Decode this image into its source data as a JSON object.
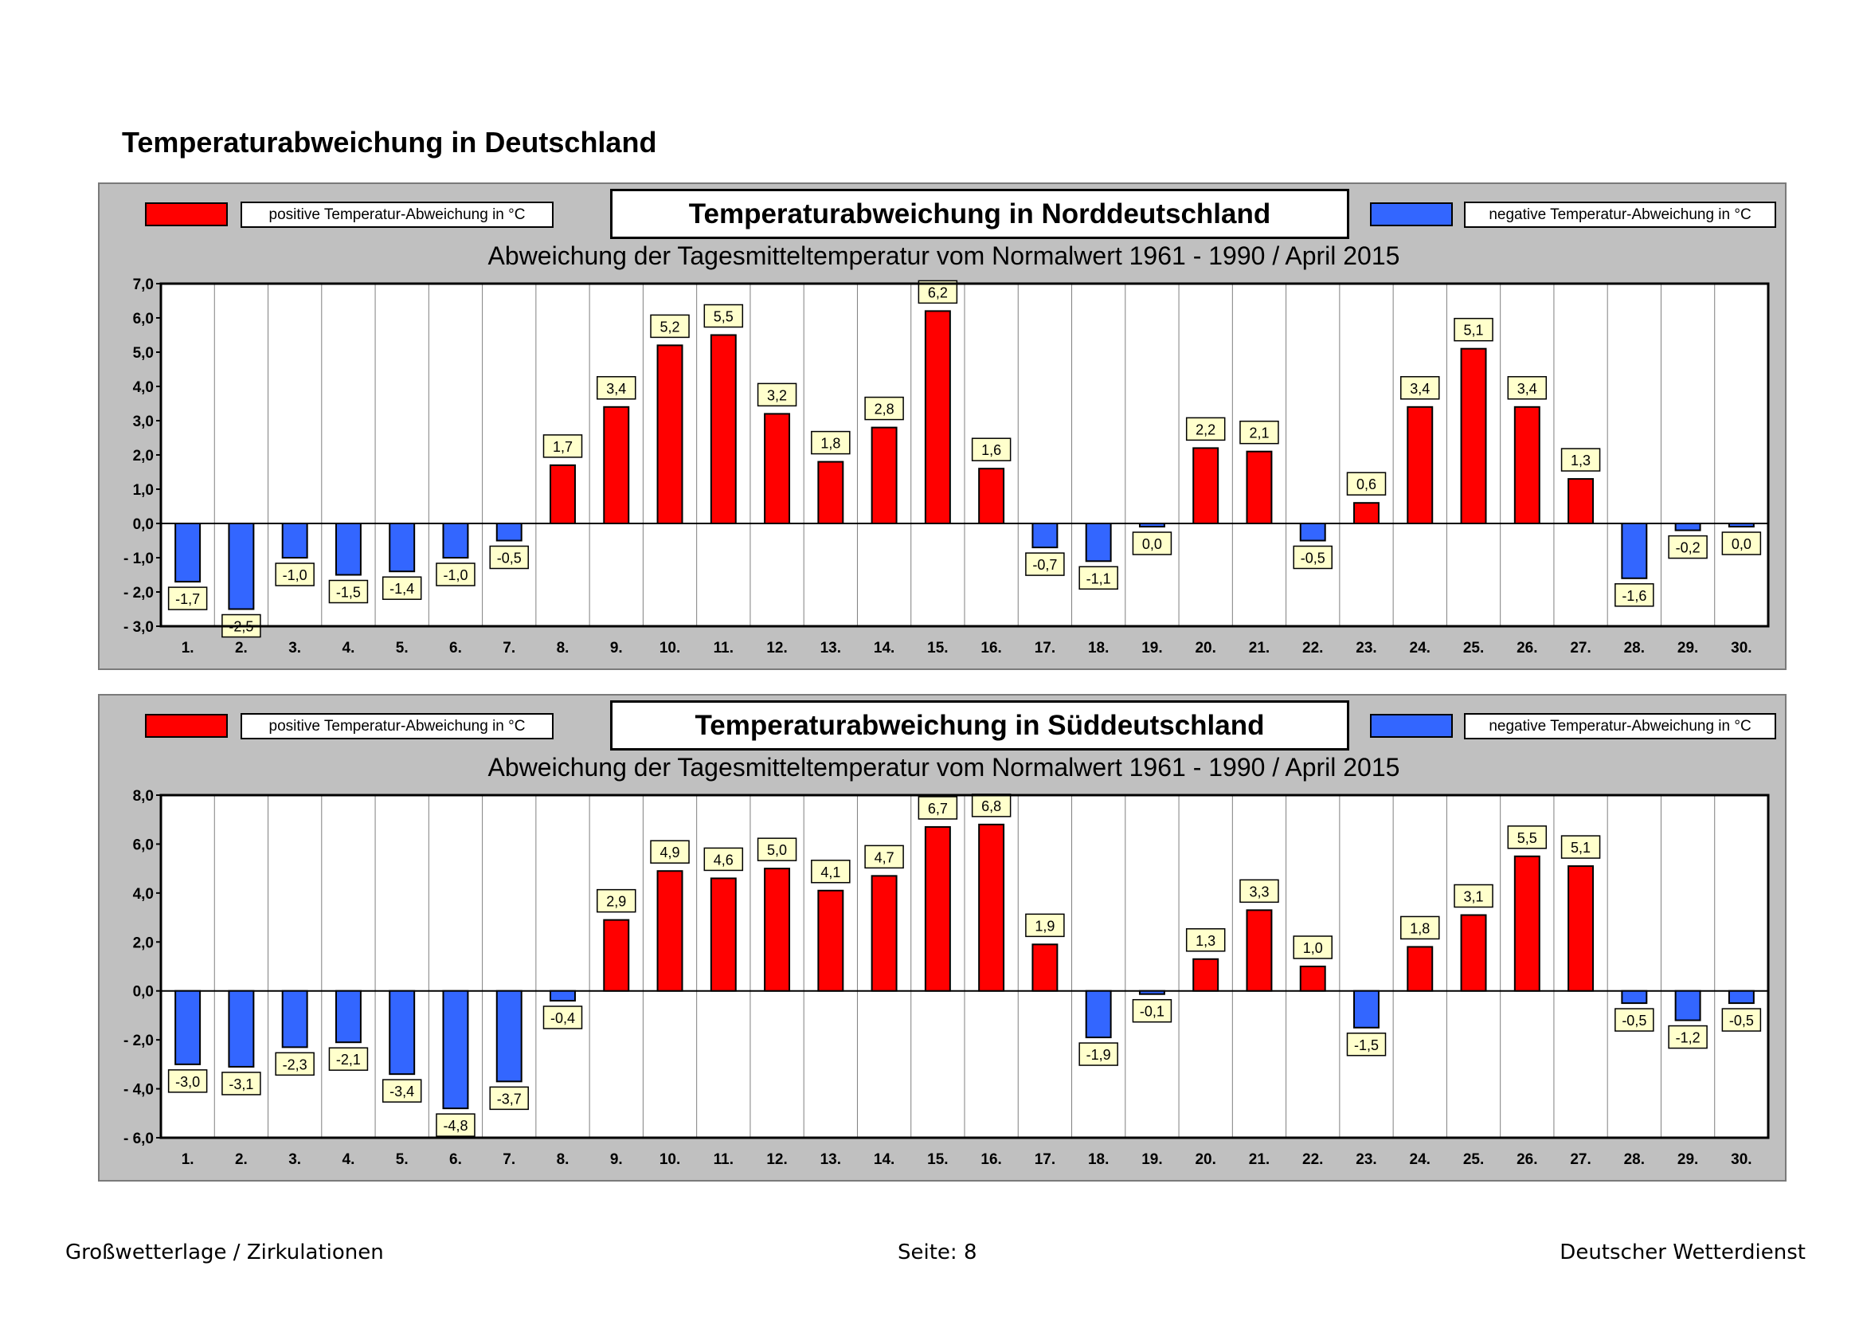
{
  "page": {
    "title": "Temperaturabweichung in Deutschland",
    "footer_left": "Großwetterlage / Zirkulationen",
    "footer_center": "Seite: 8",
    "footer_right": "Deutscher Wetterdienst"
  },
  "legend": {
    "positive": "positive Temperatur-Abweichung in °C",
    "negative": "negative Temperatur-Abweichung in °C",
    "positive_color": "#ff0000",
    "negative_color": "#3366ff",
    "label_box_color": "#ffffcc"
  },
  "chart_data": [
    {
      "type": "bar",
      "title": "Temperaturabweichung in Norddeutschland",
      "subtitle": "Abweichung der Tagesmitteltemperatur vom Normalwert 1961 - 1990  /  April 2015",
      "xlabel": "",
      "ylabel": "",
      "ylim": [
        -3,
        7
      ],
      "yticks": [
        7,
        6,
        5,
        4,
        3,
        2,
        1,
        0,
        -1,
        -2,
        -3
      ],
      "ytick_labels": [
        "7,0",
        "6,0",
        "5,0",
        "4,0",
        "3,0",
        "2,0",
        "1,0",
        "0,0",
        "- 1,0",
        "- 2,0",
        "- 3,0"
      ],
      "categories": [
        "1.",
        "2.",
        "3.",
        "4.",
        "5.",
        "6.",
        "7.",
        "8.",
        "9.",
        "10.",
        "11.",
        "12.",
        "13.",
        "14.",
        "15.",
        "16.",
        "17.",
        "18.",
        "19.",
        "20.",
        "21.",
        "22.",
        "23.",
        "24.",
        "25.",
        "26.",
        "27.",
        "28.",
        "29.",
        "30."
      ],
      "values": [
        -1.7,
        -2.5,
        -1.0,
        -1.5,
        -1.4,
        -1.0,
        -0.5,
        1.7,
        3.4,
        5.2,
        5.5,
        3.2,
        1.8,
        2.8,
        6.2,
        1.6,
        -0.7,
        -1.1,
        -0.05,
        2.2,
        2.1,
        -0.5,
        0.6,
        3.4,
        5.1,
        3.4,
        1.3,
        -1.6,
        -0.2,
        -0.04
      ],
      "labels": [
        "-1,7",
        "-2,5",
        "-1,0",
        "-1,5",
        "-1,4",
        "-1,0",
        "-0,5",
        "1,7",
        "3,4",
        "5,2",
        "5,5",
        "3,2",
        "1,8",
        "2,8",
        "6,2",
        "1,6",
        "-0,7",
        "-1,1",
        "0,0",
        "2,2",
        "2,1",
        "-0,5",
        "0,6",
        "3,4",
        "5,1",
        "3,4",
        "1,3",
        "-1,6",
        "-0,2",
        "0,0"
      ],
      "grid": true,
      "legend_position": "top"
    },
    {
      "type": "bar",
      "title": "Temperaturabweichung in Süddeutschland",
      "subtitle": "Abweichung der Tagesmitteltemperatur vom Normalwert 1961 - 1990  /  April 2015",
      "xlabel": "",
      "ylabel": "",
      "ylim": [
        -6,
        8
      ],
      "yticks": [
        8,
        6,
        4,
        2,
        0,
        -2,
        -4,
        -6
      ],
      "ytick_labels": [
        "8,0",
        "6,0",
        "4,0",
        "2,0",
        "0,0",
        "- 2,0",
        "- 4,0",
        "- 6,0"
      ],
      "categories": [
        "1.",
        "2.",
        "3.",
        "4.",
        "5.",
        "6.",
        "7.",
        "8.",
        "9.",
        "10.",
        "11.",
        "12.",
        "13.",
        "14.",
        "15.",
        "16.",
        "17.",
        "18.",
        "19.",
        "20.",
        "21.",
        "22.",
        "23.",
        "24.",
        "25.",
        "26.",
        "27.",
        "28.",
        "29.",
        "30."
      ],
      "values": [
        -3.0,
        -3.1,
        -2.3,
        -2.1,
        -3.4,
        -4.8,
        -3.7,
        -0.4,
        2.9,
        4.9,
        4.6,
        5.0,
        4.1,
        4.7,
        6.7,
        6.8,
        1.9,
        -1.9,
        -0.1,
        1.3,
        3.3,
        1.0,
        -1.5,
        1.8,
        3.1,
        5.5,
        5.1,
        -0.5,
        -1.2,
        -0.5
      ],
      "labels": [
        "-3,0",
        "-3,1",
        "-2,3",
        "-2,1",
        "-3,4",
        "-4,8",
        "-3,7",
        "-0,4",
        "2,9",
        "4,9",
        "4,6",
        "5,0",
        "4,1",
        "4,7",
        "6,7",
        "6,8",
        "1,9",
        "-1,9",
        "-0,1",
        "1,3",
        "3,3",
        "1,0",
        "-1,5",
        "1,8",
        "3,1",
        "5,5",
        "5,1",
        "-0,5",
        "-1,2",
        "-0,5"
      ],
      "grid": true,
      "legend_position": "top"
    }
  ]
}
